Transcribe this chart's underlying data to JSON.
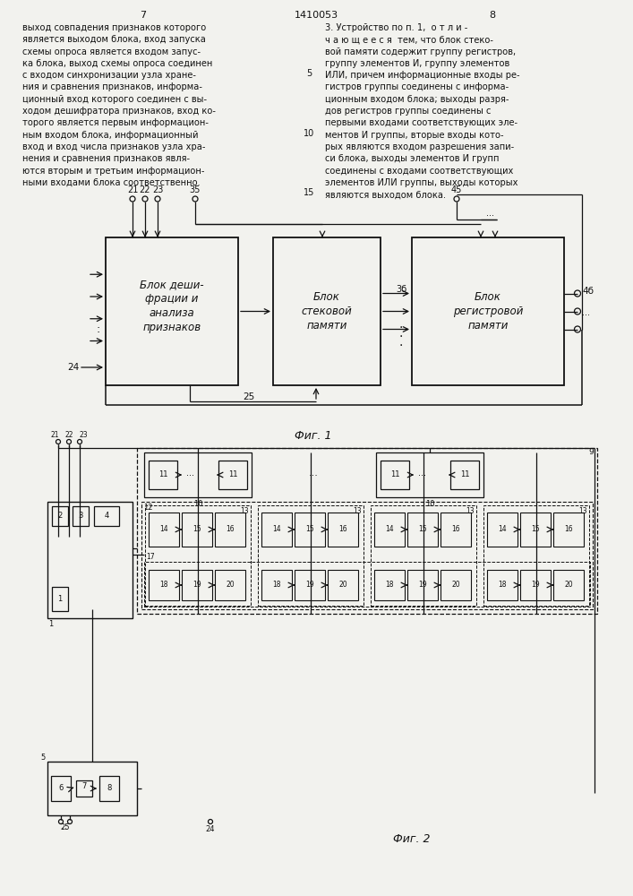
{
  "page_bg": "#f2f2ee",
  "text_color": "#1a1a1a",
  "page_number_left": "7",
  "page_number_center": "1410053",
  "page_number_right": "8",
  "col_left_lines": [
    "выход совпадения признаков которого",
    "является выходом блока, вход запуска",
    "схемы опроса является входом запус-",
    "ка блока, выход схемы опроса соединен",
    "с входом синхронизации узла хране-",
    "ния и сравнения признаков, информа-",
    "ционный вход которого соединен с вы-",
    "ходом дешифратора признаков, вход ко-",
    "торого является первым информацион-",
    "ным входом блока, информационный",
    "вход и вход числа признаков узла хра-",
    "нения и сравнения признаков явля-",
    "ются вторым и третьим информацион-",
    "ными входами блока соответственно."
  ],
  "col_right_lines": [
    "3. Устройство по п. 1,  о т л и -",
    "ч а ю щ е е с я  тем, что блок стеко-",
    "вой памяти содержит группу регистров,",
    "группу элементов И, группу элементов",
    "ИЛИ, причем информационные входы ре-",
    "гистров группы соединены с информа-",
    "ционным входом блока; выходы разря-",
    "дов регистров группы соединены с",
    "первыми входами соответствующих эле-",
    "ментов И группы, вторые входы кото-",
    "рых являются входом разрешения запи-",
    "си блока, выходы элементов И групп",
    "соединены с входами соответствующих",
    "элементов ИЛИ группы, выходы которых",
    "являются выходом блока."
  ],
  "fig1_caption": "Фиг. 1",
  "fig2_caption": "Фиг. 2",
  "block1_text": [
    "Блок деши-",
    "фрации и",
    "анализа",
    "признаков"
  ],
  "block2_text": [
    "Блок",
    "стековой",
    "памяти"
  ],
  "block3_text": [
    "Блок",
    "регистровой",
    "памяти"
  ]
}
